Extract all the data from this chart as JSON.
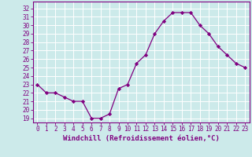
{
  "x": [
    0,
    1,
    2,
    3,
    4,
    5,
    6,
    7,
    8,
    9,
    10,
    11,
    12,
    13,
    14,
    15,
    16,
    17,
    18,
    19,
    20,
    21,
    22,
    23
  ],
  "y": [
    23,
    22,
    22,
    21.5,
    21,
    21,
    19,
    19,
    19.5,
    22.5,
    23,
    25.5,
    26.5,
    29,
    30.5,
    31.5,
    31.5,
    31.5,
    30,
    29,
    27.5,
    26.5,
    25.5,
    25
  ],
  "line_color": "#800080",
  "marker": "D",
  "marker_size": 2.2,
  "linewidth": 0.9,
  "bg_color": "#cceaea",
  "grid_color": "#ffffff",
  "xlabel": "Windchill (Refroidissement éolien,°C)",
  "xlabel_fontsize": 6.5,
  "xlabel_color": "#800080",
  "ylabel_ticks": [
    19,
    20,
    21,
    22,
    23,
    24,
    25,
    26,
    27,
    28,
    29,
    30,
    31,
    32
  ],
  "ylim": [
    18.5,
    32.8
  ],
  "xlim": [
    -0.5,
    23.5
  ],
  "xtick_labels": [
    "0",
    "1",
    "2",
    "3",
    "4",
    "5",
    "6",
    "7",
    "8",
    "9",
    "10",
    "11",
    "12",
    "13",
    "14",
    "15",
    "16",
    "17",
    "18",
    "19",
    "20",
    "21",
    "22",
    "23"
  ],
  "tick_fontsize": 5.5,
  "tick_color": "#800080",
  "spine_color": "#800080"
}
